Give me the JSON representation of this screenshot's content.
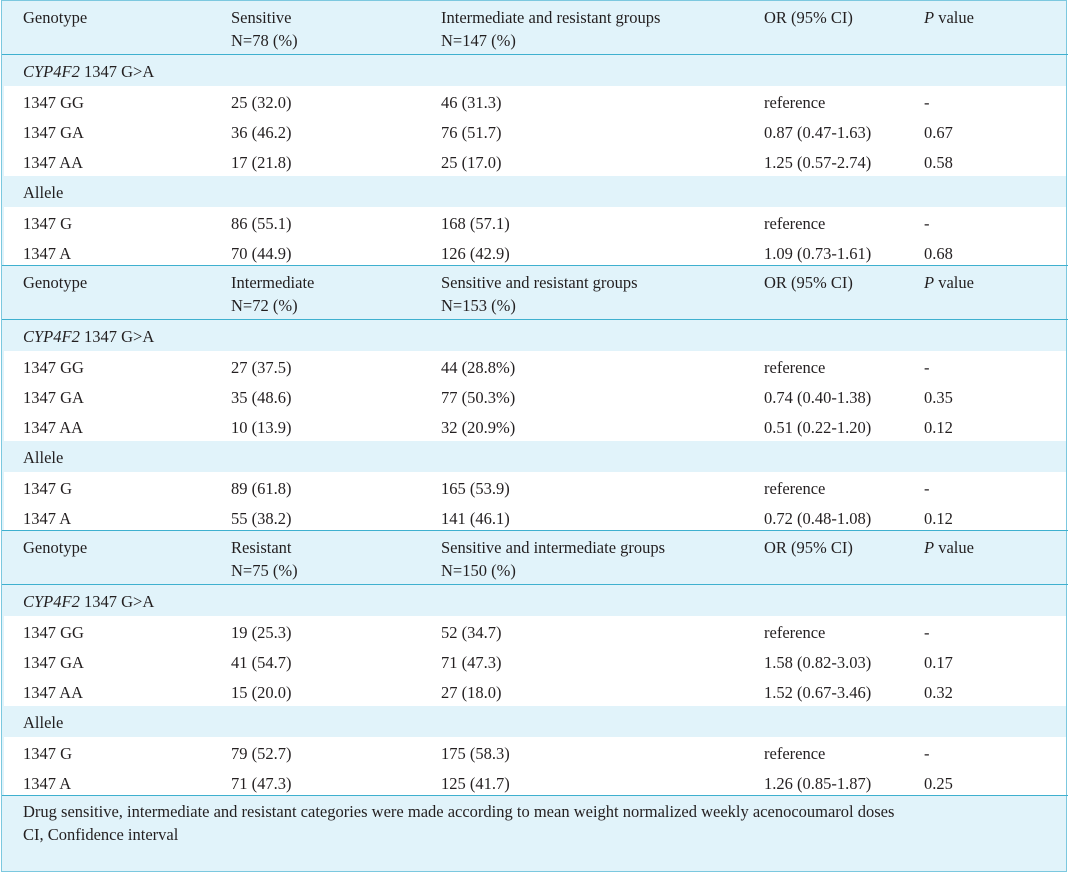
{
  "blocks": [
    {
      "header": {
        "genotype": "Genotype",
        "group_a": "Sensitive",
        "group_a_n": "N=78 (%)",
        "group_b": "Intermediate and resistant groups",
        "group_b_n": "N=147 (%)",
        "or": "OR (95% CI)",
        "p_italic": "P",
        "p_rest": " value"
      },
      "section_gene": "CYP4F2",
      "section_rest": " 1347 G>A",
      "genotypes": [
        [
          "1347 GG",
          "25 (32.0)",
          "46 (31.3)",
          "reference",
          "-"
        ],
        [
          "1347 GA",
          "36 (46.2)",
          "76 (51.7)",
          "0.87 (0.47-1.63)",
          "0.67"
        ],
        [
          "1347 AA",
          "17 (21.8)",
          "25 (17.0)",
          "1.25 (0.57-2.74)",
          "0.58"
        ]
      ],
      "allele_label": "Allele",
      "alleles": [
        [
          "1347 G",
          "86 (55.1)",
          "168 (57.1)",
          "reference",
          "-"
        ],
        [
          "1347 A",
          "70 (44.9)",
          "126 (42.9)",
          "1.09 (0.73-1.61)",
          "0.68"
        ]
      ]
    },
    {
      "header": {
        "genotype": "Genotype",
        "group_a": "Intermediate",
        "group_a_n": "N=72 (%)",
        "group_b": "Sensitive and resistant groups",
        "group_b_n": "N=153 (%)",
        "or": "OR (95% CI)",
        "p_italic": "P",
        "p_rest": " value"
      },
      "section_gene": "CYP4F2",
      "section_rest": " 1347 G>A",
      "genotypes": [
        [
          "1347 GG",
          "27 (37.5)",
          "44 (28.8%)",
          "reference",
          "-"
        ],
        [
          "1347 GA",
          "35 (48.6)",
          "77 (50.3%)",
          "0.74 (0.40-1.38)",
          "0.35"
        ],
        [
          "1347 AA",
          "10 (13.9)",
          "32 (20.9%)",
          "0.51 (0.22-1.20)",
          "0.12"
        ]
      ],
      "allele_label": "Allele",
      "alleles": [
        [
          "1347 G",
          "89 (61.8)",
          "165 (53.9)",
          "reference",
          "-"
        ],
        [
          "1347 A",
          "55 (38.2)",
          "141 (46.1)",
          "0.72 (0.48-1.08)",
          "0.12"
        ]
      ]
    },
    {
      "header": {
        "genotype": "Genotype",
        "group_a": "Resistant",
        "group_a_n": "N=75 (%)",
        "group_b": "Sensitive and intermediate groups",
        "group_b_n": "N=150 (%)",
        "or": "OR (95% CI)",
        "p_italic": "P",
        "p_rest": " value"
      },
      "section_gene": "CYP4F2",
      "section_rest": " 1347 G>A",
      "genotypes": [
        [
          "1347 GG",
          "19 (25.3)",
          "52 (34.7)",
          "reference",
          "-"
        ],
        [
          "1347 GA",
          "41 (54.7)",
          "71 (47.3)",
          "1.58 (0.82-3.03)",
          "0.17"
        ],
        [
          "1347 AA",
          "15 (20.0)",
          "27 (18.0)",
          "1.52 (0.67-3.46)",
          "0.32"
        ]
      ],
      "allele_label": "Allele",
      "alleles": [
        [
          "1347 G",
          "79 (52.7)",
          "175 (58.3)",
          "reference",
          "-"
        ],
        [
          "1347 A",
          "71 (47.3)",
          "125 (41.7)",
          "1.26 (0.85-1.87)",
          "0.25"
        ]
      ]
    }
  ],
  "footnotes": [
    "Drug sensitive, intermediate and resistant categories were made according to mean weight normalized weekly acenocoumarol doses",
    "CI, Confidence interval"
  ]
}
